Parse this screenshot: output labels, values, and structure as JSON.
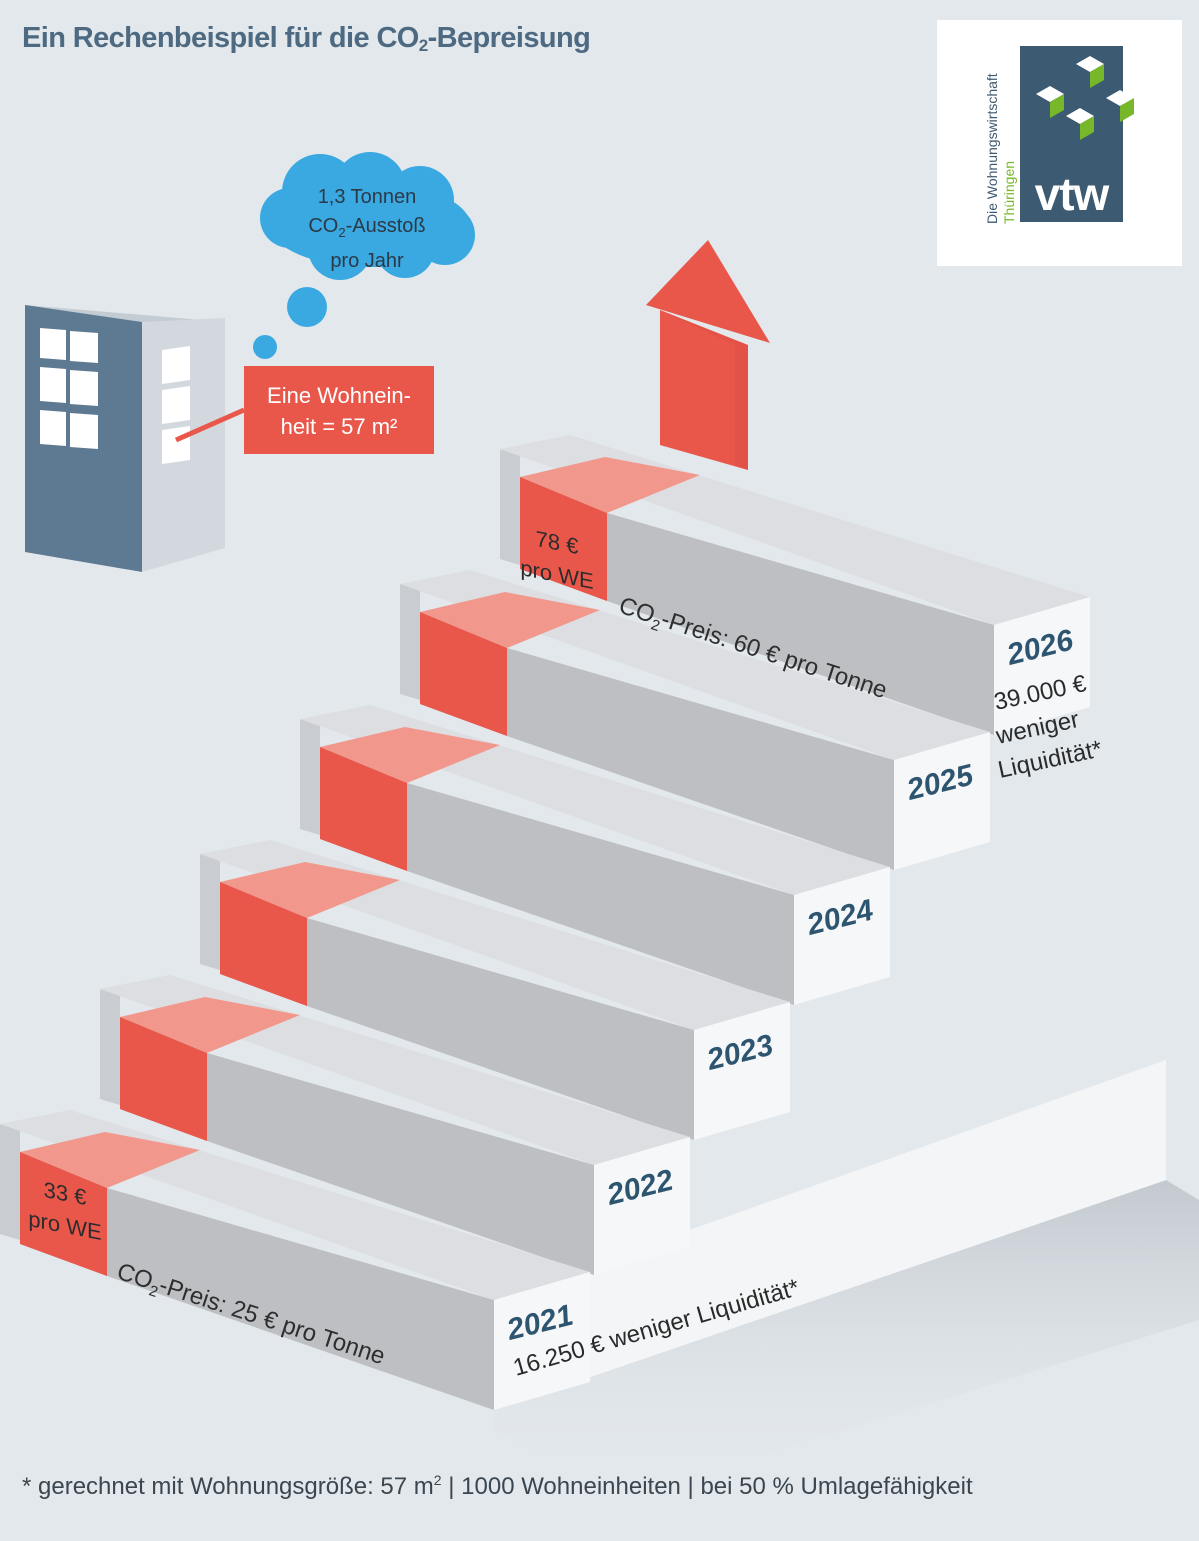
{
  "title": {
    "text": "Ein Rechenbeispiel für die CO",
    "sub": "2",
    "suffix": "-Bepreisung"
  },
  "logo": {
    "line1": "Die Wohnungswirtschaft",
    "line2": "Thüringen",
    "word": "vtw"
  },
  "cloud": {
    "line1": "1,3 Tonnen",
    "line2_main": "CO",
    "line2_sub": "2",
    "line2_rest": "-Ausstoß",
    "line3": "pro Jahr"
  },
  "unit_label": {
    "line1": "Eine Wohnein-",
    "line2": "heit = 57 m²"
  },
  "steps": [
    {
      "year": "2021",
      "cost_line1": "33 €",
      "cost_line2": "pro WE",
      "price_prefix": "CO",
      "price_sub": "2",
      "price_rest": "-Preis: 25 € pro Tonne",
      "liquidity": "16.250 € weniger Liquidität*"
    },
    {
      "year": "2022"
    },
    {
      "year": "2023"
    },
    {
      "year": "2024"
    },
    {
      "year": "2025"
    },
    {
      "year": "2026",
      "cost_line1": "78 €",
      "cost_line2": "pro WE",
      "price_prefix": "CO",
      "price_sub": "2",
      "price_rest": "-Preis: 60 € pro Tonne",
      "liquidity_line1": "39.000 €",
      "liquidity_line2": "weniger",
      "liquidity_line3": "Liquidität*"
    }
  ],
  "footnote": {
    "prefix": "* gerechnet mit Wohnungsgröße: 57 m",
    "sup": "2",
    "suffix": " | 1000 Wohneinheiten | bei 50 % Umlagefähigkeit"
  },
  "colors": {
    "background": "#e3e8ec",
    "title": "#4d6a82",
    "red": "#e9574b",
    "red_light": "#f2978c",
    "cloud": "#3aa8e1",
    "year": "#2d5570",
    "logo_tile": "#3c5a72",
    "logo_green": "#76b82a"
  },
  "icons": {
    "building": "building-icon",
    "arrow": "arrow-up-icon",
    "cloud": "thought-cloud-icon"
  }
}
